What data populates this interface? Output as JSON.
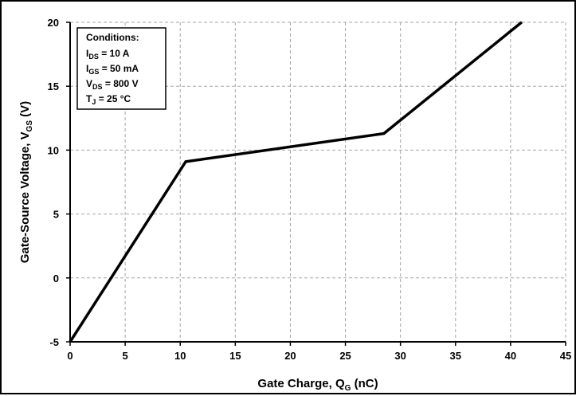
{
  "chart_data": {
    "type": "line",
    "xlabel": {
      "main": "Gate Charge, Q",
      "sub": "G",
      "unit": " (nC)"
    },
    "ylabel": {
      "main": "Gate-Source Voltage, V",
      "sub": "GS",
      "unit": " (V)"
    },
    "xlim": [
      0,
      45
    ],
    "ylim": [
      -5,
      20
    ],
    "xticks": [
      "0",
      "5",
      "10",
      "15",
      "20",
      "25",
      "30",
      "35",
      "40",
      "45"
    ],
    "yticks": [
      "-5",
      "0",
      "5",
      "10",
      "15",
      "20"
    ],
    "grid": true,
    "series": [
      {
        "points": [
          [
            0,
            -5
          ],
          [
            10.5,
            9.1
          ],
          [
            28.5,
            11.3
          ],
          [
            41,
            20
          ]
        ]
      }
    ],
    "annotation": {
      "title": "Conditions:",
      "lines": [
        {
          "main": "I",
          "sub": "DS",
          "rest": " = 10 A"
        },
        {
          "main": "I",
          "sub": "GS",
          "rest": " = 50 mA"
        },
        {
          "main": "V",
          "sub": "DS",
          "rest": " = 800 V"
        },
        {
          "main": "T",
          "sub": "J",
          "rest": " = 25 °C"
        }
      ]
    },
    "colors": {
      "line": "#000000",
      "grid": "#a6a6a6",
      "background": "#ffffff"
    }
  }
}
